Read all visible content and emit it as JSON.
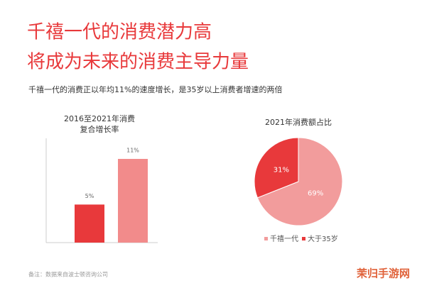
{
  "header": {
    "title": [
      "千禧一代的消费潜力高",
      "将成为未来的消费主导力量"
    ],
    "subtitle": "千禧一代的消费正以年均11%的速度增长，是35岁以上消费者增速的两倍"
  },
  "chart_data": [
    {
      "type": "bar",
      "title": [
        "2016至2021年消费",
        "复合增长率"
      ],
      "categories": [
        null,
        null
      ],
      "values": [
        5,
        11
      ],
      "value_labels": [
        "5%",
        "11%"
      ],
      "colors": [
        "#e8393b",
        "#f28b8b"
      ]
    },
    {
      "type": "pie",
      "title": "2021年消费额占比",
      "categories": [
        "千禧一代",
        "大于35岁"
      ],
      "values": [
        69,
        31
      ],
      "value_labels": [
        "69%",
        "31%"
      ],
      "colors": [
        "#f29c9c",
        "#e8393b"
      ]
    }
  ],
  "footer": "备注：数据来自波士顿咨询公司",
  "watermark": "茉归手游网"
}
